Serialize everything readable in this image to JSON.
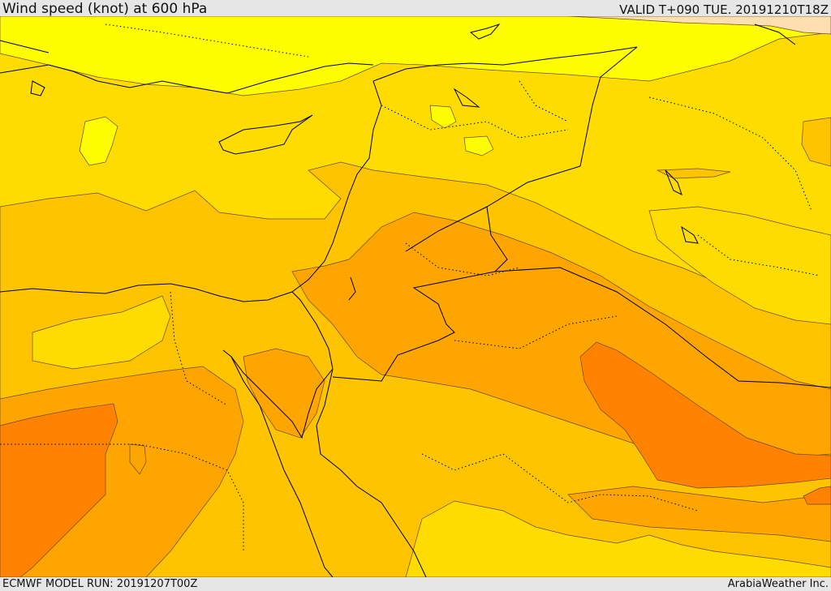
{
  "header": {
    "title": "Wind speed (knot) at 600 hPa",
    "valid": "VALID T+090 TUE. 20191210T18Z"
  },
  "footer": {
    "model_run": "ECMWF MODEL RUN: 20191207T00Z",
    "credit": "ArabiaWeather Inc."
  },
  "colors": {
    "lightest": "#fee0b0",
    "yellow": "#fffe00",
    "light_gold": "#ffe800",
    "gold": "#ffdc00",
    "amber": "#ffc400",
    "orange": "#ffa500",
    "dark_orange": "#ff8200",
    "contour_line": "#6a4a20",
    "border_line": "#000000"
  }
}
